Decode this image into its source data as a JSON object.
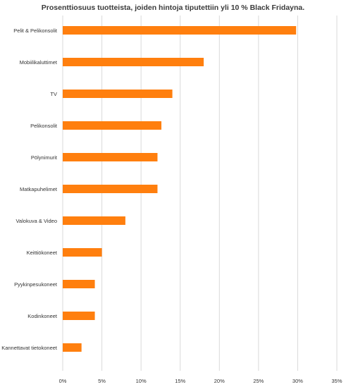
{
  "chart_data": {
    "type": "bar",
    "orientation": "horizontal",
    "title": "Prosenttiosuus tuotteista, joiden hintoja tiputettiin yli 10 % Black Fridayna.",
    "xlabel": "",
    "ylabel": "",
    "categories": [
      "Pelit & Pelikonsolit",
      "Mobiilikaluttimet",
      "TV",
      "Pelikonsolit",
      "Pölynimurit",
      "Matkapuhelimet",
      "Valokuva & Video",
      "Keittiökoneet",
      "Pyykinpesukoneet",
      "Kodinkoneet",
      "Kannettavat tietokoneet"
    ],
    "values": [
      29.8,
      18.0,
      14.0,
      12.6,
      12.1,
      12.1,
      8.0,
      5.0,
      4.1,
      4.1,
      2.4
    ],
    "xlim": [
      0,
      35
    ],
    "xticks": [
      0,
      5,
      10,
      15,
      20,
      25,
      30,
      35
    ],
    "xtick_labels": [
      "0%",
      "5%",
      "10%",
      "15%",
      "20%",
      "25%",
      "30%",
      "35%"
    ],
    "grid": true,
    "legend": "none",
    "bar_color": "#ff7f0e",
    "grid_color": "#d9d9d9"
  }
}
